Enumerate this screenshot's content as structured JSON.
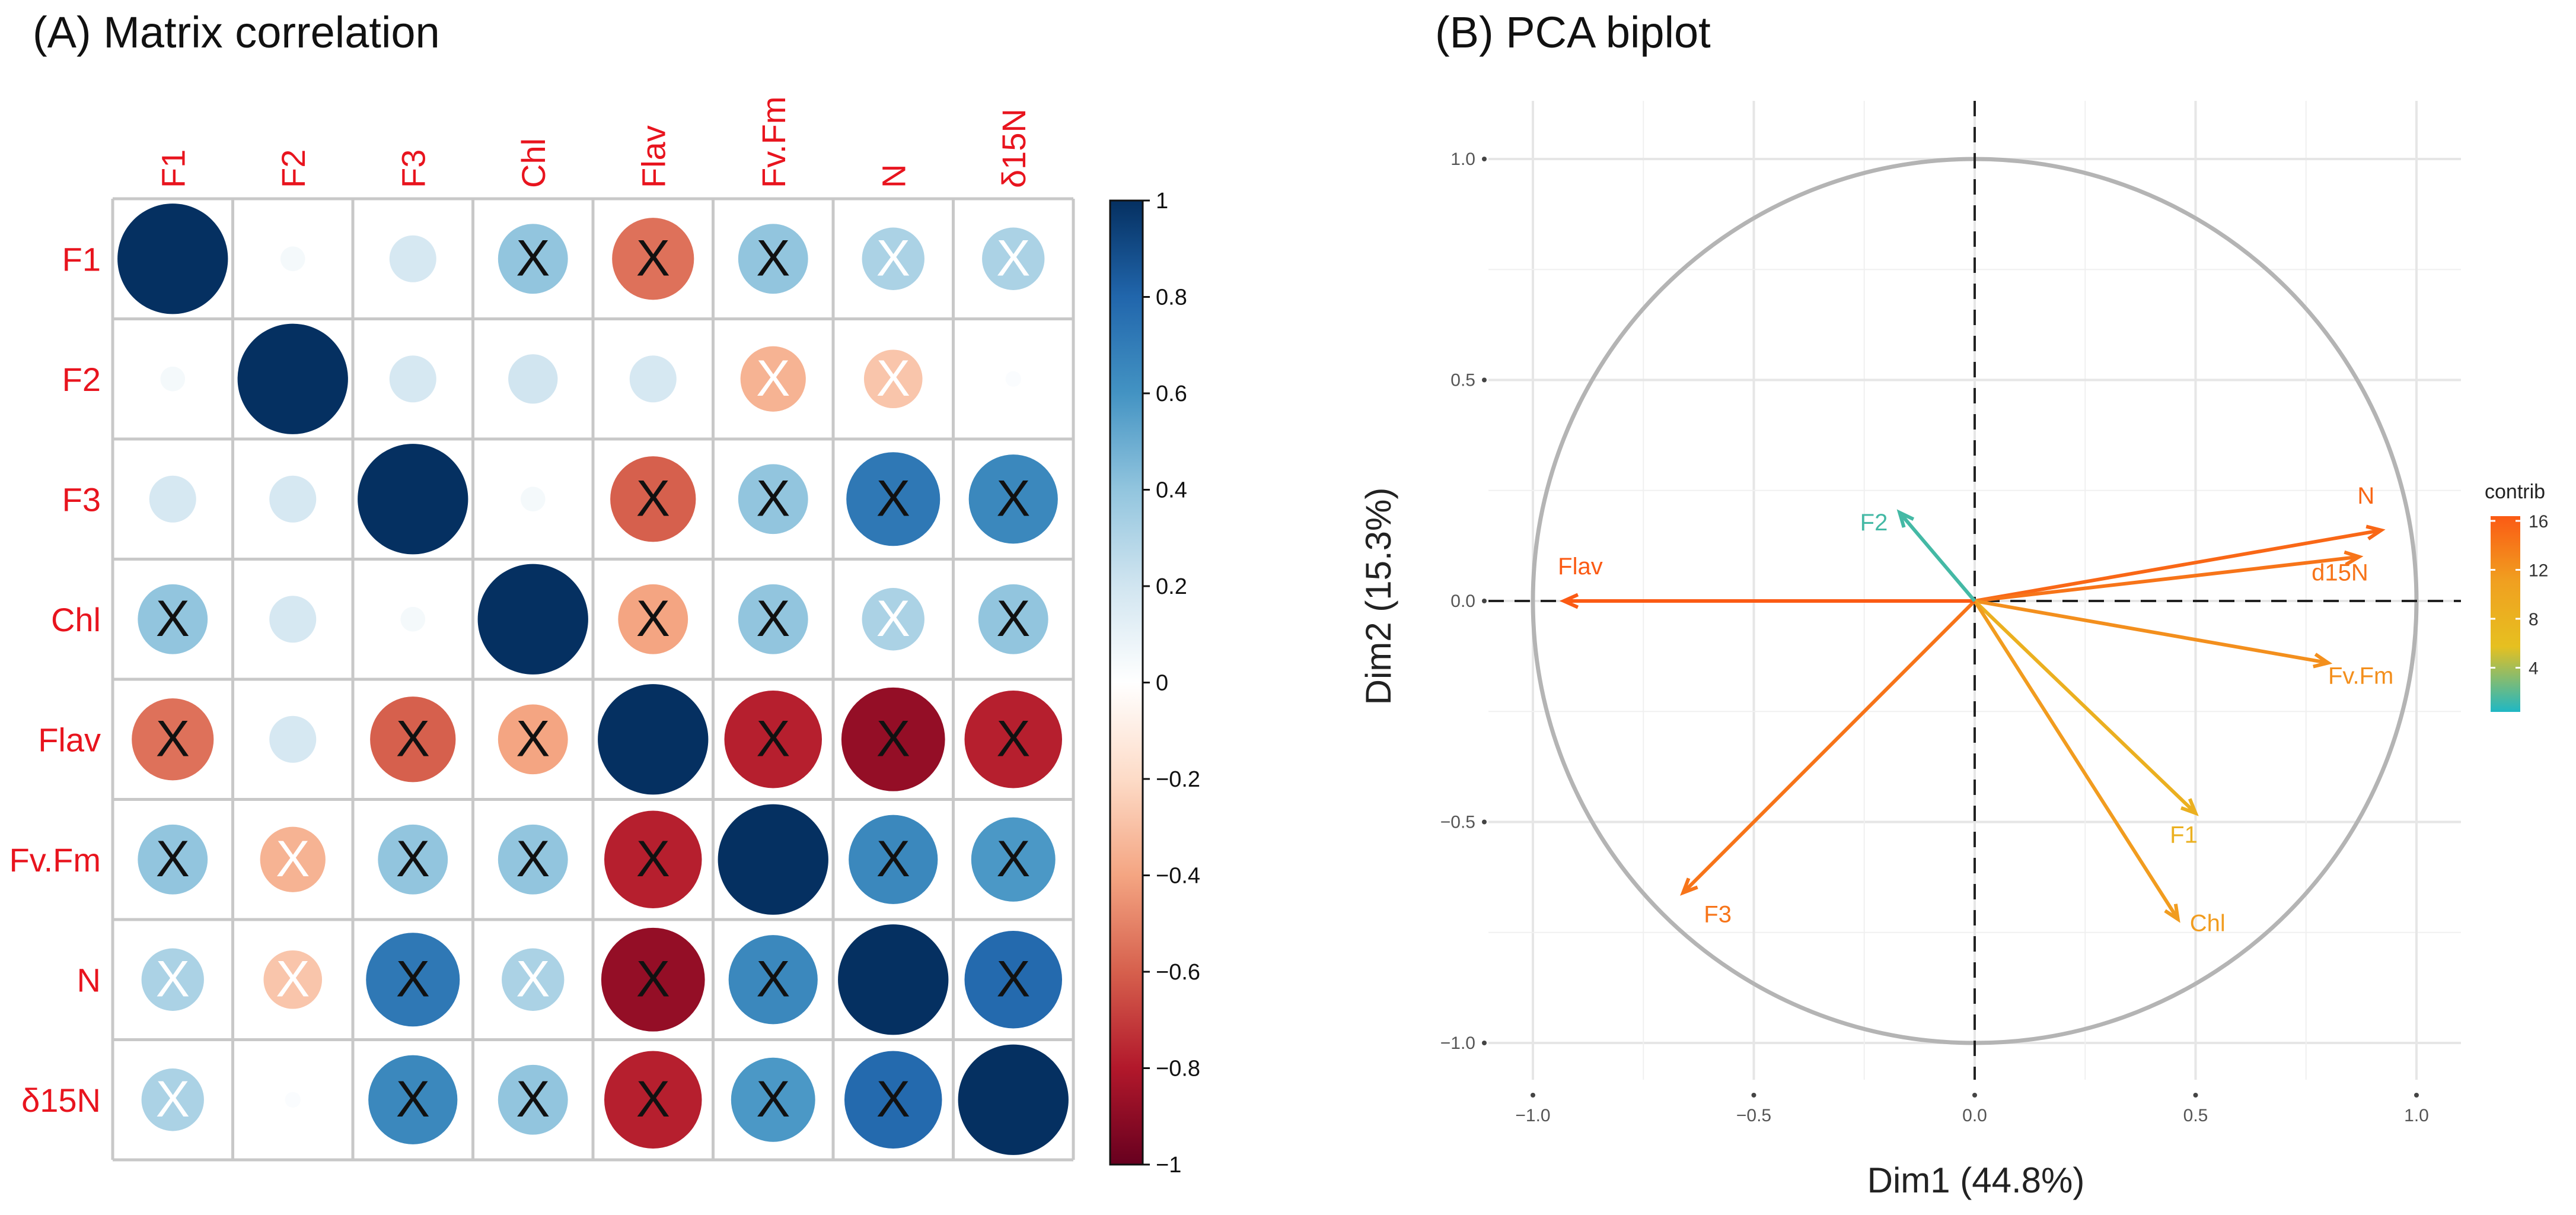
{
  "chart_data": [
    {
      "type": "heatmap",
      "title": "(A) Matrix correlation",
      "variables_columns": [
        "F1",
        "F2",
        "F3",
        "Chl",
        "Flav",
        "Fv.Fm",
        "N",
        "δ15N"
      ],
      "variables_rows": [
        "F1",
        "F2",
        "F3",
        "Chl",
        "Flav",
        "Fv.Fm",
        "N",
        "δ15N"
      ],
      "correlations": [
        [
          1.0,
          0.05,
          0.18,
          0.4,
          -0.55,
          0.4,
          0.32,
          0.32
        ],
        [
          0.05,
          1.0,
          0.18,
          0.2,
          0.18,
          -0.35,
          -0.28,
          0.02
        ],
        [
          0.18,
          0.18,
          1.0,
          0.05,
          -0.6,
          0.4,
          0.72,
          0.65
        ],
        [
          0.4,
          0.18,
          0.05,
          1.0,
          -0.4,
          0.4,
          0.32,
          0.4
        ],
        [
          -0.55,
          0.18,
          -0.6,
          -0.4,
          1.0,
          -0.78,
          -0.88,
          -0.78
        ],
        [
          0.4,
          -0.35,
          0.4,
          0.4,
          -0.78,
          1.0,
          0.65,
          0.58
        ],
        [
          0.32,
          -0.28,
          0.72,
          0.32,
          -0.88,
          0.65,
          1.0,
          0.78
        ],
        [
          0.32,
          0.02,
          0.65,
          0.4,
          -0.78,
          0.58,
          0.78,
          1.0
        ]
      ],
      "crossed": [
        [
          false,
          false,
          false,
          true,
          true,
          true,
          true,
          true
        ],
        [
          false,
          false,
          false,
          false,
          false,
          true,
          true,
          false
        ],
        [
          false,
          false,
          false,
          false,
          true,
          true,
          true,
          true
        ],
        [
          true,
          false,
          false,
          false,
          true,
          true,
          true,
          true
        ],
        [
          true,
          false,
          true,
          true,
          false,
          true,
          true,
          true
        ],
        [
          true,
          true,
          true,
          true,
          true,
          false,
          true,
          true
        ],
        [
          true,
          true,
          true,
          true,
          true,
          true,
          false,
          true
        ],
        [
          true,
          false,
          true,
          true,
          true,
          true,
          true,
          false
        ]
      ],
      "cross_mark": "X",
      "colorbar": {
        "ticks": [
          1,
          0.8,
          0.6,
          0.4,
          0.2,
          0,
          -0.2,
          -0.4,
          -0.6,
          -0.8,
          -1
        ],
        "tick_labels": [
          "1",
          "0.8",
          "0.6",
          "0.4",
          "0.2",
          "0",
          "−0.2",
          "−0.4",
          "−0.6",
          "−0.8",
          "−1"
        ],
        "range": [
          -1,
          1
        ],
        "colors": [
          "#67001f",
          "#b2182b",
          "#d6604d",
          "#f4a582",
          "#fddbc7",
          "#ffffff",
          "#d1e5f0",
          "#92c5de",
          "#4393c3",
          "#2166ac",
          "#053061"
        ]
      },
      "label_color": "#e8141e"
    },
    {
      "type": "scatter",
      "subtype": "pca-variable-biplot",
      "title": "(B) PCA biplot",
      "xlabel": "Dim1 (44.8%)",
      "ylabel": "Dim2 (15.3%)",
      "xlim": [
        -1.1,
        1.1
      ],
      "ylim": [
        -1.05,
        1.05
      ],
      "xticks": [
        -1.0,
        -0.5,
        0.0,
        0.5,
        1.0
      ],
      "xtick_labels": [
        "−1.0",
        "−0.5",
        "0.0",
        "0.5",
        "1.0"
      ],
      "yticks": [
        -1.0,
        -0.5,
        0.0,
        0.5,
        1.0
      ],
      "ytick_labels": [
        "−1.0",
        "−0.5",
        "0.0",
        "0.5",
        "1.0"
      ],
      "grid": true,
      "unit_circle": true,
      "vectors": [
        {
          "name": "N",
          "x": 0.92,
          "y": 0.16,
          "contrib": 15
        },
        {
          "name": "d15N",
          "x": 0.87,
          "y": 0.1,
          "contrib": 14
        },
        {
          "name": "Fv.Fm",
          "x": 0.8,
          "y": -0.14,
          "contrib": 12
        },
        {
          "name": "F1",
          "x": 0.5,
          "y": -0.48,
          "contrib": 8
        },
        {
          "name": "Chl",
          "x": 0.46,
          "y": -0.72,
          "contrib": 11
        },
        {
          "name": "F3",
          "x": -0.66,
          "y": -0.66,
          "contrib": 14
        },
        {
          "name": "Flav",
          "x": -0.93,
          "y": 0.0,
          "contrib": 16
        },
        {
          "name": "F2",
          "x": -0.17,
          "y": 0.2,
          "contrib": 1
        }
      ],
      "legend": {
        "title": "contrib",
        "position": "right",
        "range": [
          0,
          16
        ],
        "ticks": [
          4,
          8,
          12,
          16
        ],
        "tick_labels": [
          "4",
          "8",
          "12",
          "16"
        ],
        "colors": [
          "#1fb7c4",
          "#e6c020",
          "#f0a020",
          "#fb5a14"
        ]
      }
    }
  ]
}
